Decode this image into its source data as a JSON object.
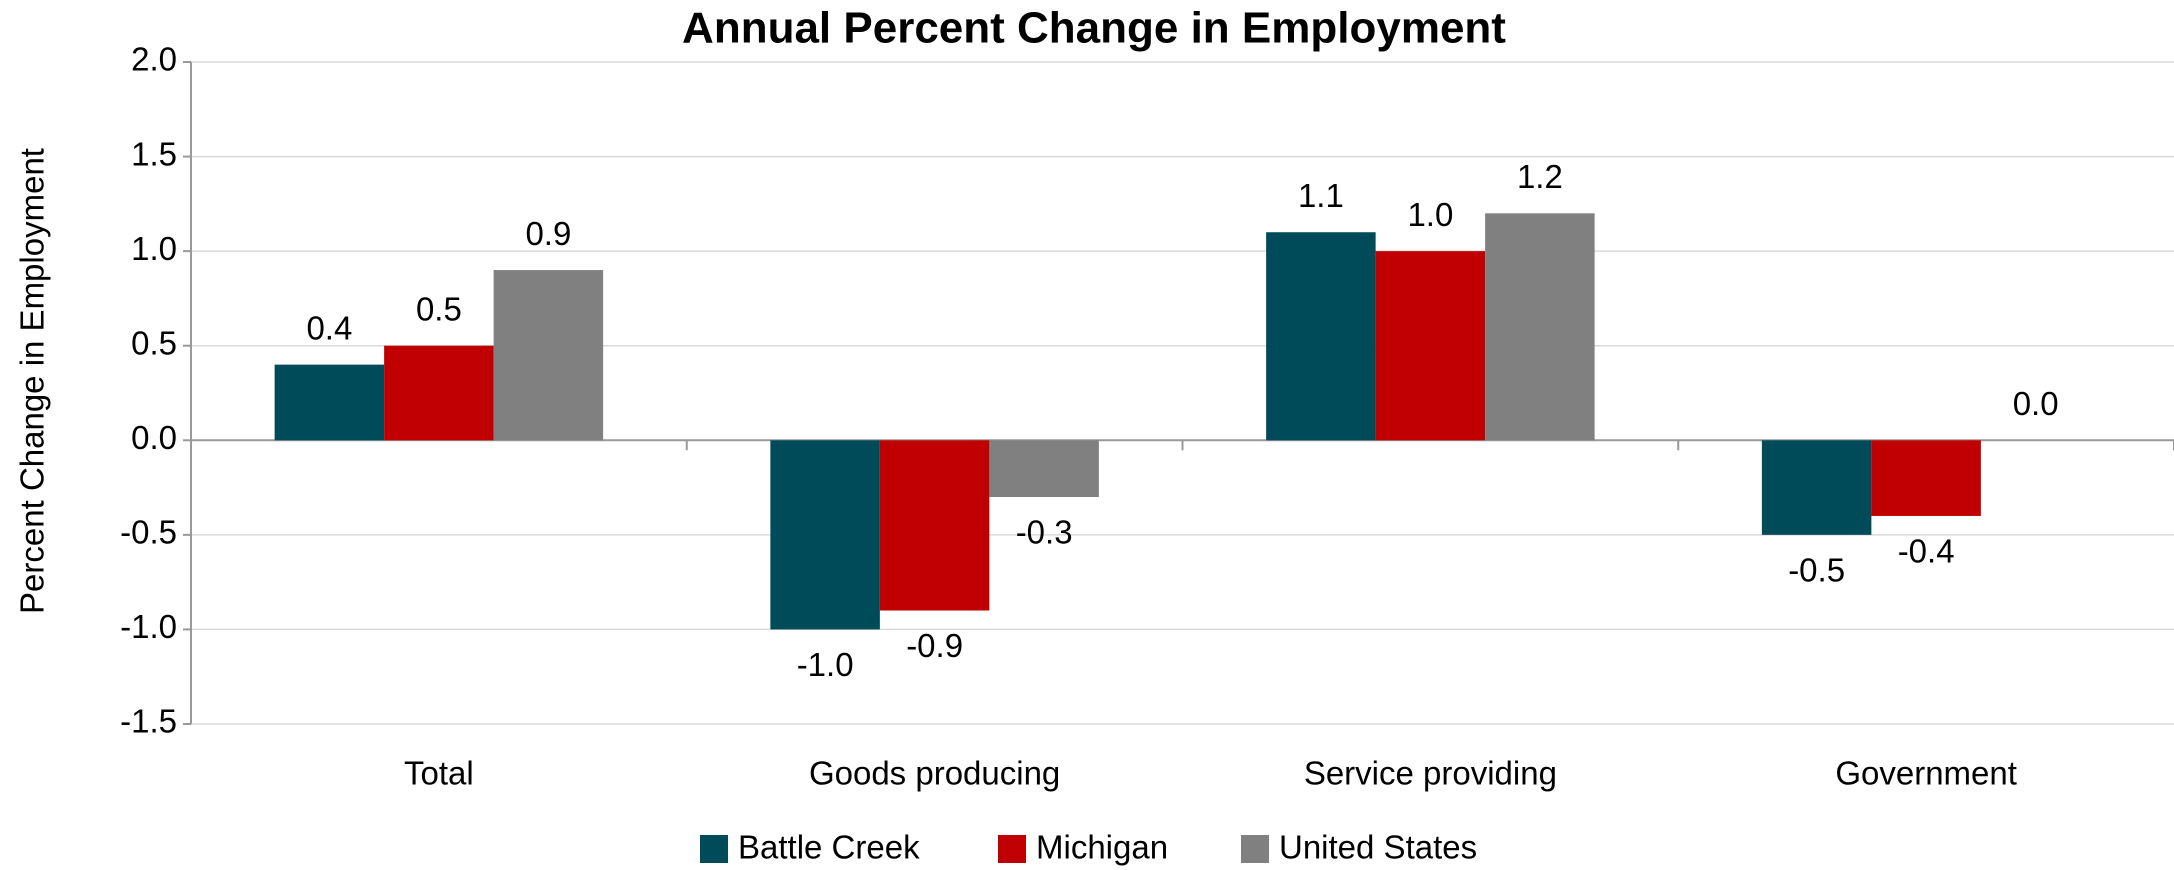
{
  "chart_data": {
    "type": "bar",
    "title": "Annual Percent Change in Employment",
    "y_label": "Percent Change in Employment",
    "categories": [
      "Total",
      "Goods producing",
      "Service providing",
      "Government"
    ],
    "series": [
      {
        "name": "Battle Creek",
        "color": "#004b5a",
        "values": [
          0.4,
          -1.0,
          1.1,
          -0.5
        ],
        "value_labels": [
          "0.4",
          "-1.0",
          "1.1",
          "-0.5"
        ]
      },
      {
        "name": "Michigan",
        "color": "#c00000",
        "values": [
          0.5,
          -0.9,
          1.0,
          -0.4
        ],
        "value_labels": [
          "0.5",
          "-0.9",
          "1.0",
          "-0.4"
        ]
      },
      {
        "name": "United States",
        "color": "#808080",
        "values": [
          0.9,
          -0.3,
          1.2,
          0.0
        ],
        "value_labels": [
          "0.9",
          "-0.3",
          "1.2",
          "0.0"
        ]
      }
    ],
    "ylim": [
      -1.5,
      2.0
    ],
    "yticks": [
      -1.5,
      {
        "value": -1.0,
        "label": "-1.0"
      },
      -0.5,
      {
        "value": 0.0,
        "label": "0.0"
      },
      0.5,
      {
        "value": 1.0,
        "label": "1.0"
      },
      1.5,
      {
        "value": 2.0,
        "label": "2.0"
      }
    ],
    "grid": true,
    "legend": "bottom"
  }
}
